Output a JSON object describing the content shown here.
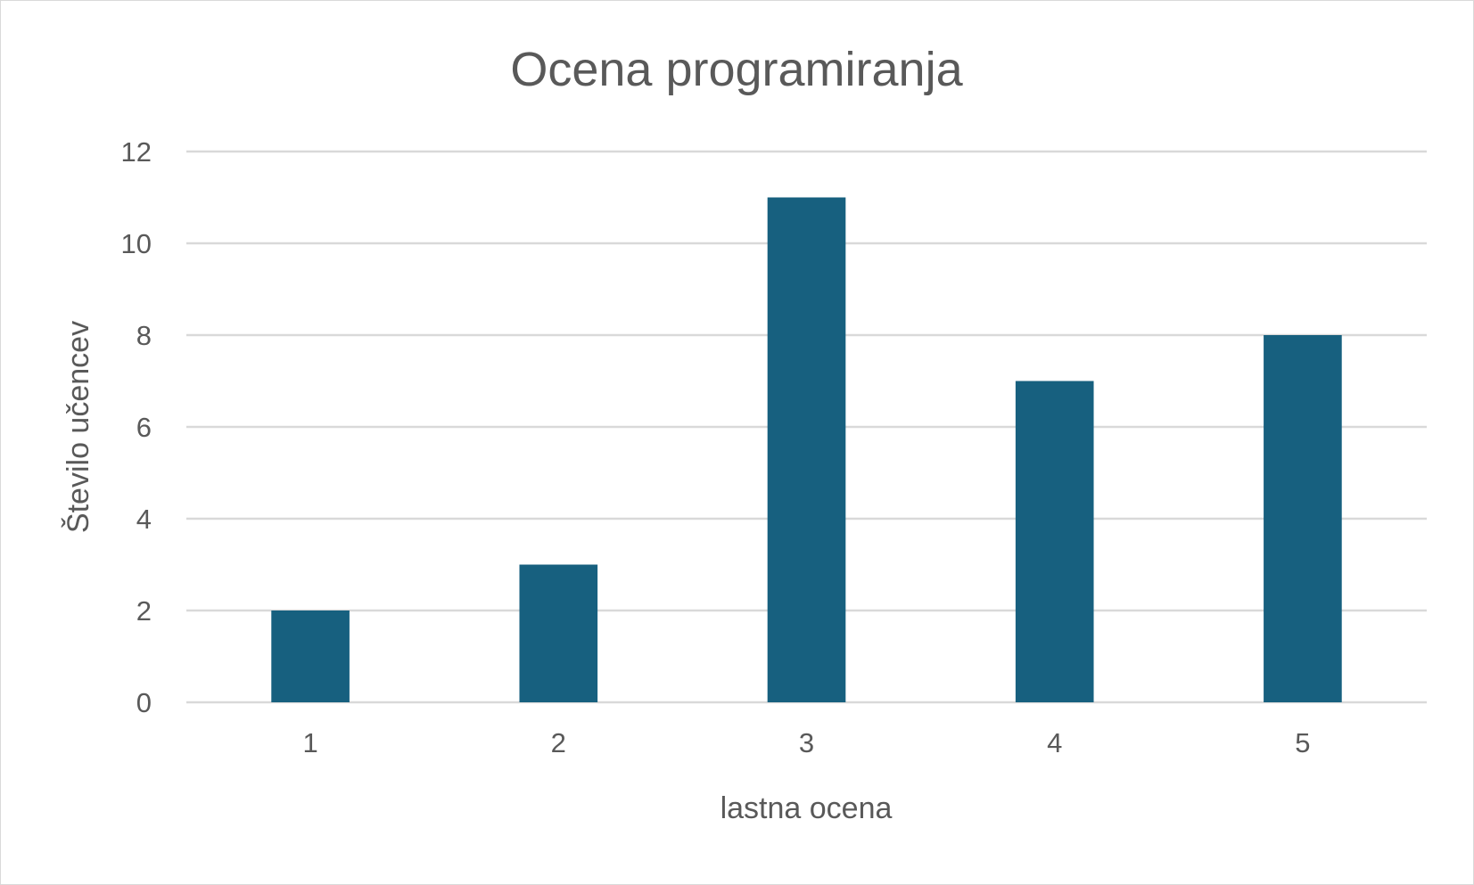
{
  "chart_data": {
    "type": "bar",
    "title": "Ocena programiranja",
    "xlabel": "lastna ocena",
    "ylabel": "Število učencev",
    "categories": [
      "1",
      "2",
      "3",
      "4",
      "5"
    ],
    "values": [
      2,
      3,
      11,
      7,
      8
    ],
    "ylim": [
      0,
      12
    ],
    "yticks": [
      "0",
      "2",
      "4",
      "6",
      "8",
      "10",
      "12"
    ],
    "grid": true,
    "bar_color": "#17607f",
    "grid_color": "#d9d9d9",
    "text_color": "#595959"
  }
}
